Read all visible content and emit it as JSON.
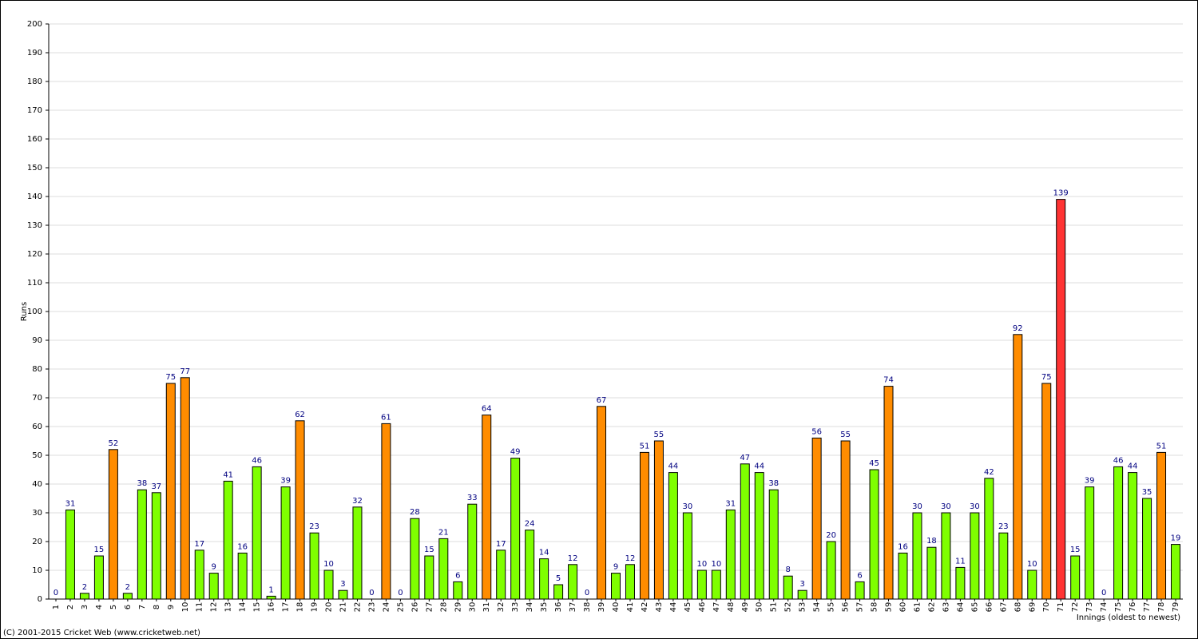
{
  "chart_data": {
    "type": "bar",
    "y_label": "Runs",
    "x_label": "Innings (oldest to newest)",
    "footer": "(C) 2001-2015 Cricket Web (www.cricketweb.net)",
    "categories": [
      "1",
      "2",
      "3",
      "4",
      "5",
      "6",
      "7",
      "8",
      "9",
      "10",
      "11",
      "12",
      "13",
      "14",
      "15",
      "16",
      "17",
      "18",
      "19",
      "20",
      "21",
      "22",
      "23",
      "24",
      "25",
      "26",
      "27",
      "28",
      "29",
      "30",
      "31",
      "32",
      "33",
      "34",
      "35",
      "36",
      "37",
      "38",
      "39",
      "40",
      "41",
      "42",
      "43",
      "44",
      "45",
      "46",
      "47",
      "48",
      "49",
      "50",
      "51",
      "52",
      "53",
      "54",
      "55",
      "56",
      "57",
      "58",
      "59",
      "60",
      "61",
      "62",
      "63",
      "64",
      "65",
      "66",
      "67",
      "68",
      "69",
      "70",
      "71",
      "72",
      "73",
      "74",
      "75",
      "76",
      "77",
      "78",
      "79"
    ],
    "values": [
      0,
      31,
      2,
      15,
      52,
      2,
      38,
      37,
      75,
      77,
      17,
      9,
      41,
      16,
      46,
      1,
      39,
      62,
      23,
      10,
      3,
      32,
      0,
      61,
      0,
      28,
      15,
      21,
      6,
      33,
      64,
      17,
      49,
      24,
      14,
      5,
      12,
      0,
      67,
      9,
      12,
      51,
      55,
      44,
      30,
      10,
      10,
      31,
      47,
      44,
      38,
      8,
      3,
      56,
      20,
      55,
      6,
      45,
      74,
      16,
      30,
      18,
      30,
      11,
      30,
      42,
      23,
      92,
      10,
      75,
      139,
      15,
      39,
      0,
      46,
      44,
      35,
      51,
      19
    ],
    "colors": [
      "#7fff00",
      "#7fff00",
      "#7fff00",
      "#7fff00",
      "#ff8c00",
      "#7fff00",
      "#7fff00",
      "#7fff00",
      "#ff8c00",
      "#ff8c00",
      "#7fff00",
      "#7fff00",
      "#7fff00",
      "#7fff00",
      "#7fff00",
      "#7fff00",
      "#7fff00",
      "#ff8c00",
      "#7fff00",
      "#7fff00",
      "#7fff00",
      "#7fff00",
      "#7fff00",
      "#ff8c00",
      "#7fff00",
      "#7fff00",
      "#7fff00",
      "#7fff00",
      "#7fff00",
      "#7fff00",
      "#ff8c00",
      "#7fff00",
      "#7fff00",
      "#7fff00",
      "#7fff00",
      "#7fff00",
      "#7fff00",
      "#7fff00",
      "#ff8c00",
      "#7fff00",
      "#7fff00",
      "#ff8c00",
      "#ff8c00",
      "#7fff00",
      "#7fff00",
      "#7fff00",
      "#7fff00",
      "#7fff00",
      "#7fff00",
      "#7fff00",
      "#7fff00",
      "#7fff00",
      "#7fff00",
      "#ff8c00",
      "#7fff00",
      "#ff8c00",
      "#7fff00",
      "#7fff00",
      "#ff8c00",
      "#7fff00",
      "#7fff00",
      "#7fff00",
      "#7fff00",
      "#7fff00",
      "#7fff00",
      "#7fff00",
      "#7fff00",
      "#ff8c00",
      "#7fff00",
      "#ff8c00",
      "#ff3333",
      "#7fff00",
      "#7fff00",
      "#7fff00",
      "#7fff00",
      "#7fff00",
      "#7fff00",
      "#ff8c00",
      "#7fff00"
    ],
    "ylim": [
      0,
      200
    ],
    "yticks": [
      0,
      10,
      20,
      30,
      40,
      50,
      60,
      70,
      80,
      90,
      100,
      110,
      120,
      130,
      140,
      150,
      160,
      170,
      180,
      190,
      200
    ],
    "grid": true
  }
}
